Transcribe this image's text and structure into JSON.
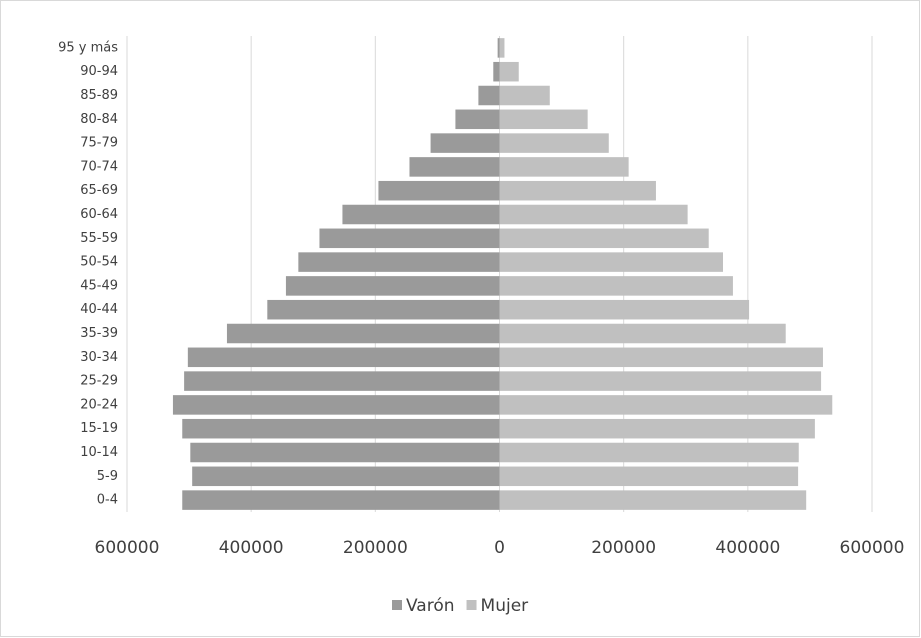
{
  "chart_data": {
    "type": "bar",
    "orientation": "horizontal",
    "stacked": true,
    "categories": [
      "0-4",
      "5-9",
      "10-14",
      "15-19",
      "20-24",
      "25-29",
      "30-34",
      "35-39",
      "40-44",
      "45-49",
      "50-54",
      "55-59",
      "60-64",
      "65-69",
      "70-74",
      "75-79",
      "80-84",
      "85-89",
      "90-94",
      "95 y más"
    ],
    "series": [
      {
        "name": "Varón",
        "color": "#9a9a9a",
        "values": [
          -511000,
          -495000,
          -498000,
          -511000,
          -526000,
          -508000,
          -502000,
          -439000,
          -374000,
          -344000,
          -324000,
          -290000,
          -253000,
          -195000,
          -145000,
          -111000,
          -71000,
          -34000,
          -10000,
          -3000
        ]
      },
      {
        "name": "Mujer",
        "color": "#c0c0c0",
        "values": [
          494000,
          481000,
          482000,
          508000,
          536000,
          518000,
          521000,
          461000,
          402000,
          376000,
          360000,
          337000,
          303000,
          252000,
          208000,
          176000,
          142000,
          81000,
          31000,
          8000
        ]
      }
    ],
    "xlim": [
      -600000,
      600000
    ],
    "xticks": [
      {
        "value": -600000,
        "label": "600000"
      },
      {
        "value": -400000,
        "label": "400000"
      },
      {
        "value": -200000,
        "label": "200000"
      },
      0,
      200000,
      400000,
      600000
    ],
    "grid": true,
    "legend": "bottom"
  }
}
